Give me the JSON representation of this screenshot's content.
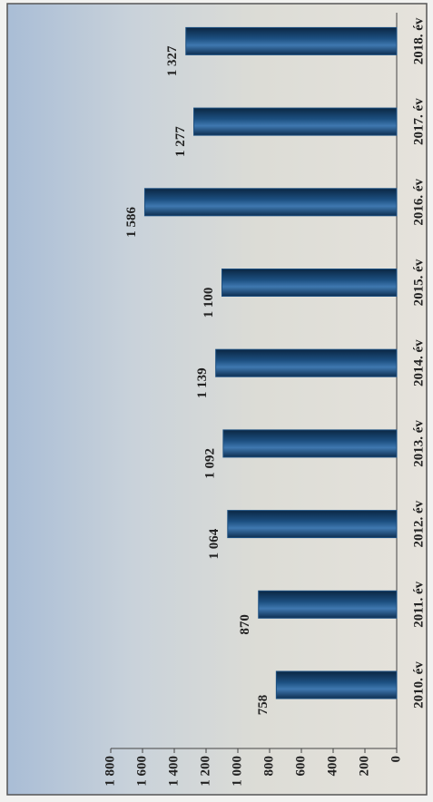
{
  "chart_data": {
    "type": "bar",
    "categories": [
      "2010. év",
      "2011. év",
      "2012. év",
      "2013. év",
      "2014. év",
      "2015. év",
      "2016. év",
      "2017. év",
      "2018. év"
    ],
    "values": [
      758,
      870,
      1064,
      1092,
      1139,
      1100,
      1586,
      1277,
      1327
    ],
    "value_labels": [
      "758",
      "870",
      "1 064",
      "1 092",
      "1 139",
      "1 100",
      "1 586",
      "1 277",
      "1 327"
    ],
    "color": "#1c4f80",
    "ylim": [
      0,
      1800
    ],
    "yticks": [
      0,
      200,
      400,
      600,
      800,
      {
        "value": 1000,
        "label": "1 000"
      },
      {
        "value": 1200,
        "label": "1 200"
      },
      {
        "value": 1400,
        "label": "1 400"
      },
      {
        "value": 1600,
        "label": "1 600"
      },
      {
        "value": 1800,
        "label": "1 800"
      }
    ],
    "grid": false
  }
}
